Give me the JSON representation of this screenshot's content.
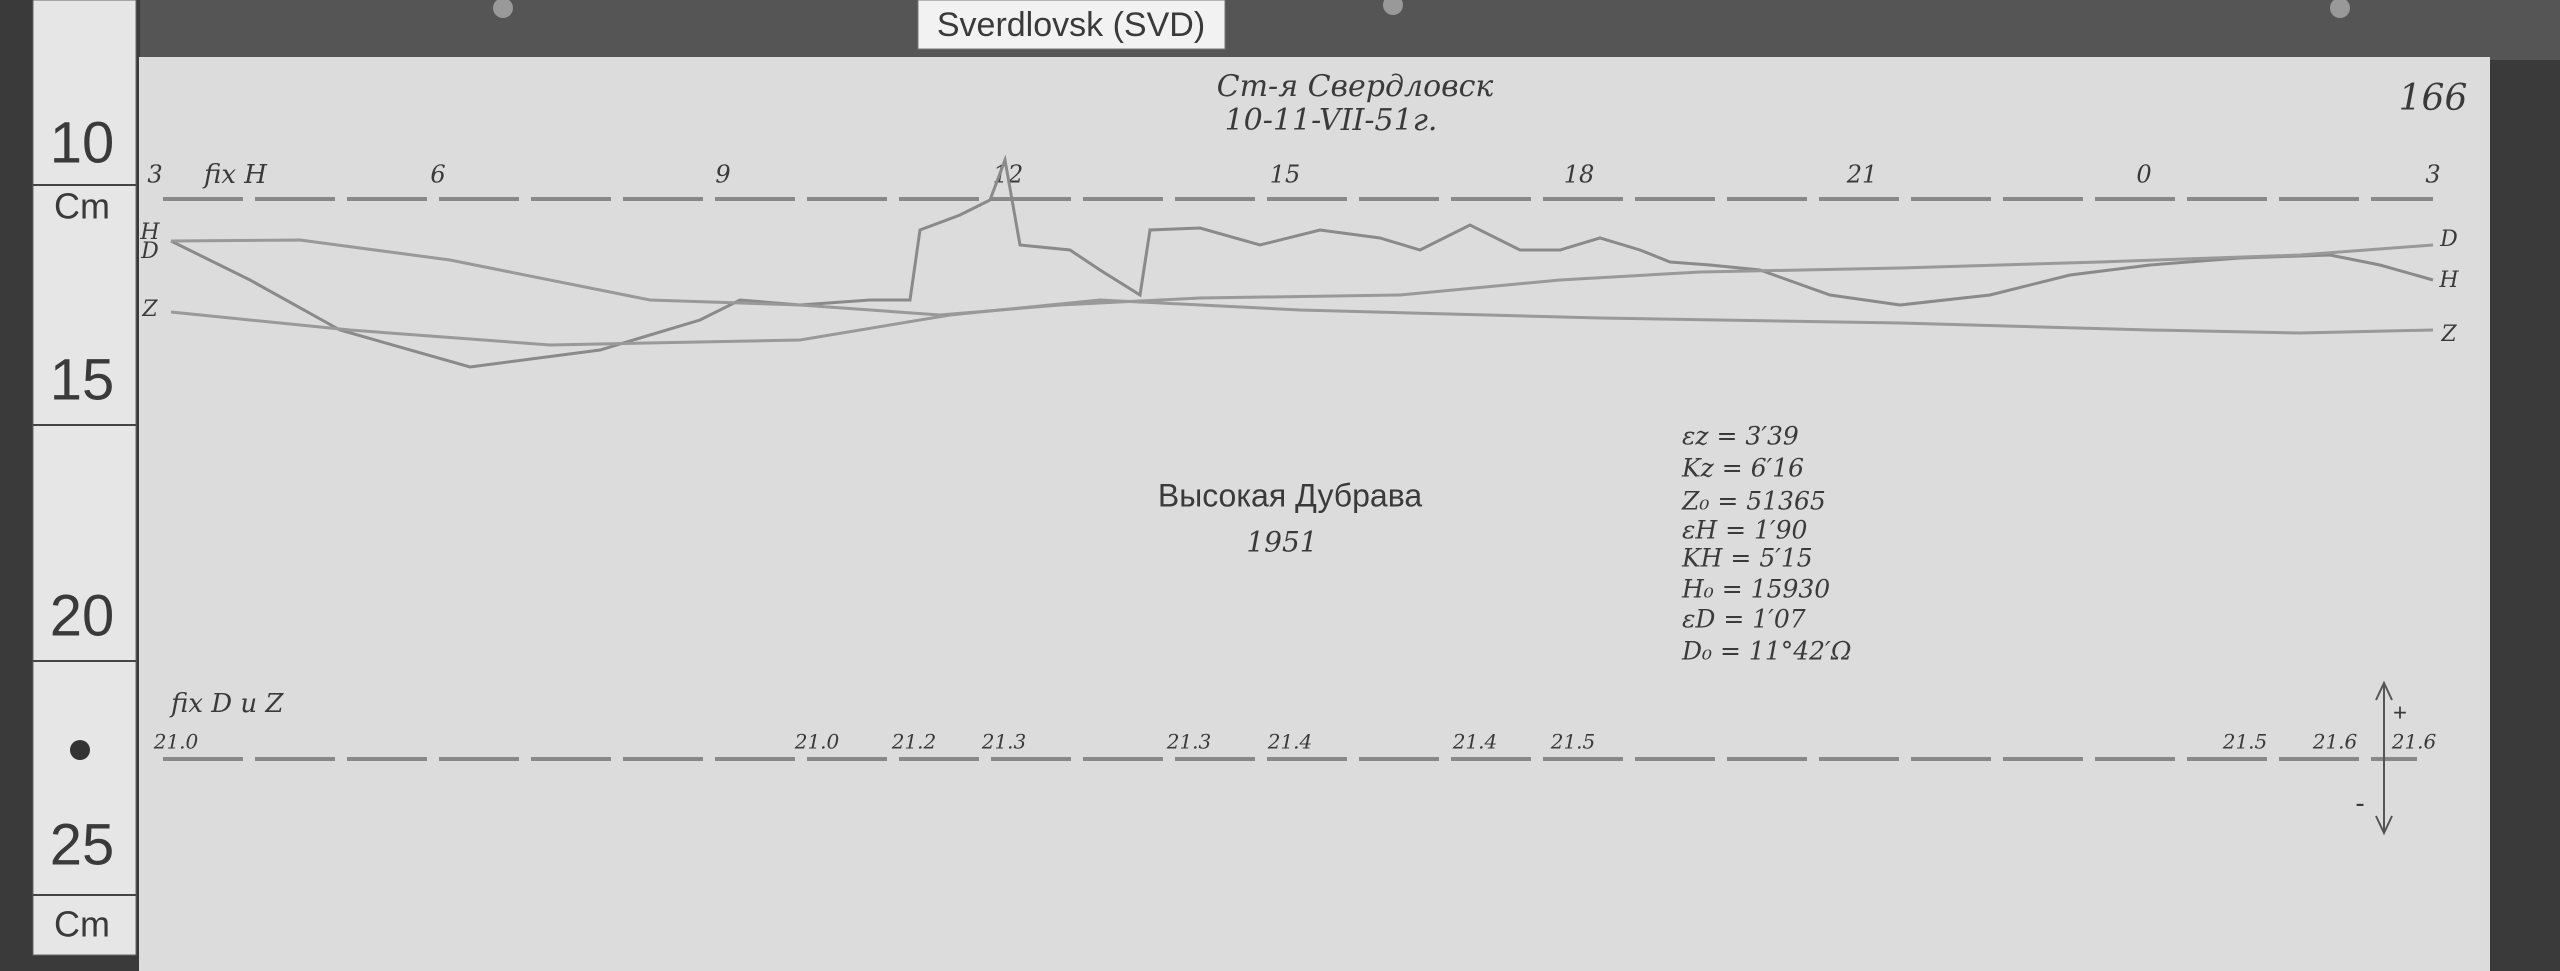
{
  "label_tag": "Sverdlovsk (SVD)",
  "ruler": {
    "labels": [
      "10",
      "Cm",
      "15",
      "20",
      "25",
      "Cm"
    ]
  },
  "header": {
    "station": "Ст-я Свердловск",
    "date": "10-11-VII-51г.",
    "page": "166"
  },
  "time_axis": {
    "label": "fix H",
    "hours": [
      "3",
      "6",
      "9",
      "12",
      "15",
      "18",
      "21",
      "0",
      "3"
    ]
  },
  "curve_labels": {
    "left": [
      "H",
      "D",
      "Z"
    ],
    "right": [
      "D",
      "H",
      "Z"
    ]
  },
  "title": {
    "name": "Высокая Дубрава",
    "year": "1951"
  },
  "constants": [
    "εz = 3′39",
    "Kz = 6′16",
    "Z₀ = 51365",
    "εH = 1′90",
    "KH = 5′15",
    "H₀ = 15930",
    "εD = 1′07",
    "D₀ = 11°42′Ω"
  ],
  "baseline_axis": {
    "label": "fix D u Z",
    "marks": [
      "21.0",
      "21.0",
      "21.2",
      "21.3",
      "21.3",
      "21.4",
      "21.4",
      "21.5",
      "21.5",
      "21.6",
      "21.6"
    ]
  },
  "polarity": [
    "+",
    "-"
  ]
}
